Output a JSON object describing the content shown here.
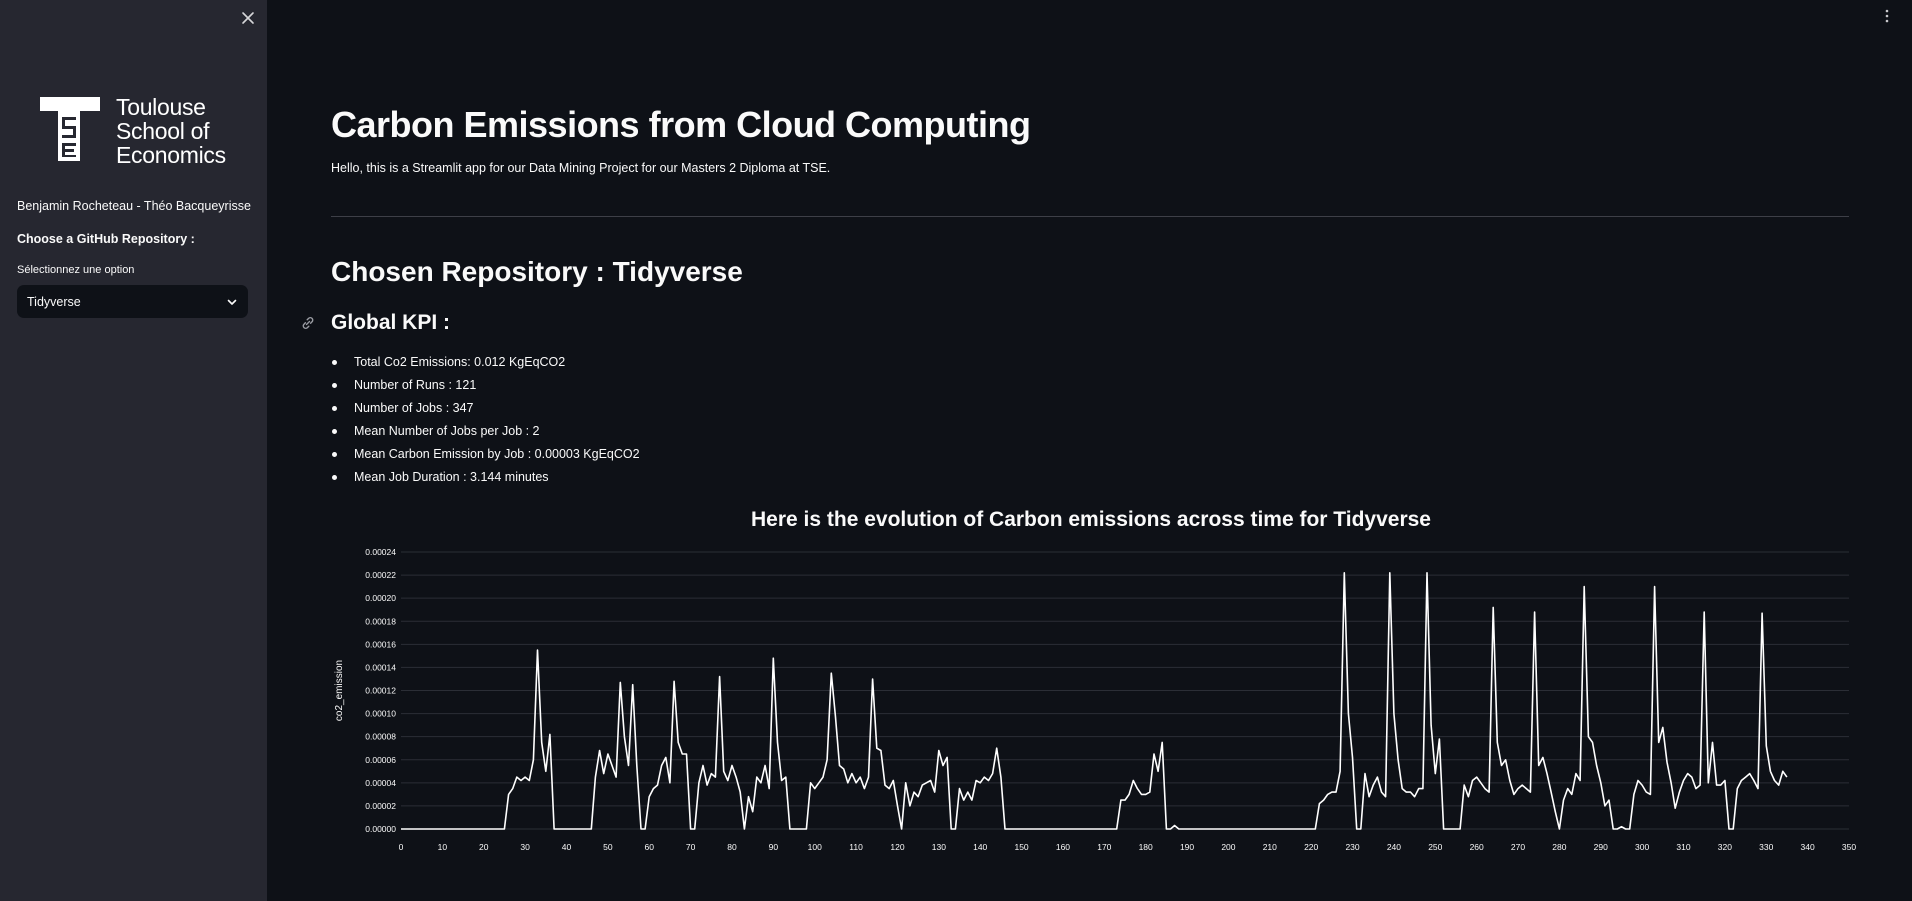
{
  "sidebar": {
    "logo_text": [
      "Toulouse",
      "School of",
      "Economics"
    ],
    "authors": "Benjamin Rocheteau - Théo Bacqueyrisse",
    "choose_label": "Choose a GitHub Repository :",
    "select_label": "Sélectionnez une option",
    "select_value": "Tidyverse"
  },
  "main": {
    "title": "Carbon Emissions from Cloud Computing",
    "intro": "Hello, this is a Streamlit app for our Data Mining Project for our Masters 2 Diploma at TSE.",
    "repo_heading": "Chosen Repository : Tidyverse",
    "kpi_heading": "Global KPI :",
    "kpis": [
      "Total Co2 Emissions: 0.012 KgEqCO2",
      "Number of Runs : 121",
      "Number of Jobs : 347",
      "Mean Number of Jobs per Job : 2",
      "Mean Carbon Emission by Job : 0.00003 KgEqCO2",
      "Mean Job Duration : 3.144 minutes"
    ]
  },
  "chart_data": {
    "type": "line",
    "title": "Here is the evolution of Carbon emissions across time for Tidyverse",
    "xlabel": "",
    "ylabel": "co2_emission",
    "xlim": [
      0,
      350
    ],
    "ylim": [
      0,
      0.00024
    ],
    "x_ticks": [
      0,
      10,
      20,
      30,
      40,
      50,
      60,
      70,
      80,
      90,
      100,
      110,
      120,
      130,
      140,
      150,
      160,
      170,
      180,
      190,
      200,
      210,
      220,
      230,
      240,
      250,
      260,
      270,
      280,
      290,
      300,
      310,
      320,
      330,
      340,
      350
    ],
    "y_ticks": [
      "0.00000",
      "0.00002",
      "0.00004",
      "0.00006",
      "0.00008",
      "0.00010",
      "0.00012",
      "0.00014",
      "0.00016",
      "0.00018",
      "0.00020",
      "0.00022",
      "0.00024"
    ],
    "grid": true,
    "line_color": "#ffffff",
    "points": [
      [
        0,
        0
      ],
      [
        25,
        0
      ],
      [
        26,
        3e-05
      ],
      [
        27,
        3.5e-05
      ],
      [
        28,
        4.5e-05
      ],
      [
        29,
        4.2e-05
      ],
      [
        30,
        4.5e-05
      ],
      [
        31,
        4.2e-05
      ],
      [
        32,
        6e-05
      ],
      [
        33,
        0.000155
      ],
      [
        34,
        7.5e-05
      ],
      [
        35,
        5e-05
      ],
      [
        36,
        8.2e-05
      ],
      [
        37,
        0
      ],
      [
        46,
        0
      ],
      [
        47,
        4.5e-05
      ],
      [
        48,
        6.8e-05
      ],
      [
        49,
        4.8e-05
      ],
      [
        50,
        6.5e-05
      ],
      [
        51,
        5.5e-05
      ],
      [
        52,
        4.5e-05
      ],
      [
        53,
        0.000127
      ],
      [
        54,
        8e-05
      ],
      [
        55,
        5.5e-05
      ],
      [
        56,
        0.000125
      ],
      [
        57,
        5.5e-05
      ],
      [
        58,
        0
      ],
      [
        59,
        0
      ],
      [
        60,
        2.8e-05
      ],
      [
        61,
        3.5e-05
      ],
      [
        62,
        3.8e-05
      ],
      [
        63,
        5.5e-05
      ],
      [
        64,
        6.2e-05
      ],
      [
        65,
        4e-05
      ],
      [
        66,
        0.000128
      ],
      [
        67,
        7.5e-05
      ],
      [
        68,
        6.5e-05
      ],
      [
        69,
        6.5e-05
      ],
      [
        70,
        0
      ],
      [
        71,
        0
      ],
      [
        72,
        4e-05
      ],
      [
        73,
        5.5e-05
      ],
      [
        74,
        3.8e-05
      ],
      [
        75,
        4.8e-05
      ],
      [
        76,
        4.5e-05
      ],
      [
        77,
        0.000132
      ],
      [
        78,
        5e-05
      ],
      [
        79,
        4.2e-05
      ],
      [
        80,
        5.5e-05
      ],
      [
        81,
        4.5e-05
      ],
      [
        82,
        3.2e-05
      ],
      [
        83,
        0
      ],
      [
        84,
        2.8e-05
      ],
      [
        85,
        1.5e-05
      ],
      [
        86,
        4.5e-05
      ],
      [
        87,
        4e-05
      ],
      [
        88,
        5.5e-05
      ],
      [
        89,
        3.5e-05
      ],
      [
        90,
        0.000148
      ],
      [
        91,
        7.5e-05
      ],
      [
        92,
        4.2e-05
      ],
      [
        93,
        4.5e-05
      ],
      [
        94,
        0
      ],
      [
        95,
        0
      ],
      [
        98,
        0
      ],
      [
        99,
        4e-05
      ],
      [
        100,
        3.5e-05
      ],
      [
        101,
        4e-05
      ],
      [
        102,
        4.5e-05
      ],
      [
        103,
        6e-05
      ],
      [
        104,
        0.000135
      ],
      [
        105,
        9.8e-05
      ],
      [
        106,
        5.5e-05
      ],
      [
        107,
        5.2e-05
      ],
      [
        108,
        4e-05
      ],
      [
        109,
        4.8e-05
      ],
      [
        110,
        4e-05
      ],
      [
        111,
        4.5e-05
      ],
      [
        112,
        3.5e-05
      ],
      [
        113,
        4.5e-05
      ],
      [
        114,
        0.00013
      ],
      [
        115,
        7e-05
      ],
      [
        116,
        6.8e-05
      ],
      [
        117,
        3.8e-05
      ],
      [
        118,
        3.5e-05
      ],
      [
        119,
        4.2e-05
      ],
      [
        120,
        2e-05
      ],
      [
        121,
        0
      ],
      [
        122,
        4e-05
      ],
      [
        123,
        2e-05
      ],
      [
        124,
        3.2e-05
      ],
      [
        125,
        2.8e-05
      ],
      [
        126,
        3.8e-05
      ],
      [
        127,
        4e-05
      ],
      [
        128,
        4.2e-05
      ],
      [
        129,
        3.2e-05
      ],
      [
        130,
        6.8e-05
      ],
      [
        131,
        5.5e-05
      ],
      [
        132,
        6.2e-05
      ],
      [
        133,
        0
      ],
      [
        134,
        0
      ],
      [
        135,
        3.5e-05
      ],
      [
        136,
        2.5e-05
      ],
      [
        137,
        3.2e-05
      ],
      [
        138,
        2.5e-05
      ],
      [
        139,
        4.2e-05
      ],
      [
        140,
        4e-05
      ],
      [
        141,
        4.5e-05
      ],
      [
        142,
        4.2e-05
      ],
      [
        143,
        4.8e-05
      ],
      [
        144,
        7e-05
      ],
      [
        145,
        4.5e-05
      ],
      [
        146,
        0
      ],
      [
        173,
        0
      ],
      [
        174,
        2.5e-05
      ],
      [
        175,
        2.5e-05
      ],
      [
        176,
        3e-05
      ],
      [
        177,
        4.2e-05
      ],
      [
        178,
        3.5e-05
      ],
      [
        179,
        3e-05
      ],
      [
        180,
        3e-05
      ],
      [
        181,
        3.2e-05
      ],
      [
        182,
        6.5e-05
      ],
      [
        183,
        5e-05
      ],
      [
        184,
        7.5e-05
      ],
      [
        185,
        0
      ],
      [
        186,
        0
      ],
      [
        187,
        3e-06
      ],
      [
        188,
        0
      ],
      [
        221,
        0
      ],
      [
        222,
        2.2e-05
      ],
      [
        223,
        2.5e-05
      ],
      [
        224,
        3e-05
      ],
      [
        225,
        3.2e-05
      ],
      [
        226,
        3.2e-05
      ],
      [
        227,
        5e-05
      ],
      [
        228,
        0.000222
      ],
      [
        229,
        0.0001
      ],
      [
        230,
        6.2e-05
      ],
      [
        231,
        0
      ],
      [
        232,
        0
      ],
      [
        233,
        4.8e-05
      ],
      [
        234,
        2.8e-05
      ],
      [
        235,
        3.8e-05
      ],
      [
        236,
        4.5e-05
      ],
      [
        237,
        3.2e-05
      ],
      [
        238,
        2.8e-05
      ],
      [
        239,
        0.000222
      ],
      [
        240,
        0.0001
      ],
      [
        241,
        6e-05
      ],
      [
        242,
        3.5e-05
      ],
      [
        243,
        3.2e-05
      ],
      [
        244,
        3.2e-05
      ],
      [
        245,
        2.8e-05
      ],
      [
        246,
        3.5e-05
      ],
      [
        247,
        3.5e-05
      ],
      [
        248,
        0.000222
      ],
      [
        249,
        9e-05
      ],
      [
        250,
        4.8e-05
      ],
      [
        251,
        7.8e-05
      ],
      [
        252,
        0
      ],
      [
        253,
        0
      ],
      [
        254,
        0
      ],
      [
        255,
        0
      ],
      [
        256,
        0
      ],
      [
        257,
        3.8e-05
      ],
      [
        258,
        2.8e-05
      ],
      [
        259,
        4.2e-05
      ],
      [
        260,
        4.5e-05
      ],
      [
        261,
        4e-05
      ],
      [
        262,
        3.5e-05
      ],
      [
        263,
        3.2e-05
      ],
      [
        264,
        0.000192
      ],
      [
        265,
        7.5e-05
      ],
      [
        266,
        5.5e-05
      ],
      [
        267,
        6e-05
      ],
      [
        268,
        4.2e-05
      ],
      [
        269,
        3e-05
      ],
      [
        270,
        3.5e-05
      ],
      [
        271,
        3.8e-05
      ],
      [
        272,
        3.5e-05
      ],
      [
        273,
        3.2e-05
      ],
      [
        274,
        0.000188
      ],
      [
        275,
        5.5e-05
      ],
      [
        276,
        6.2e-05
      ],
      [
        277,
        4.8e-05
      ],
      [
        278,
        3.2e-05
      ],
      [
        279,
        1.5e-05
      ],
      [
        280,
        0
      ],
      [
        281,
        2.5e-05
      ],
      [
        282,
        3.5e-05
      ],
      [
        283,
        3e-05
      ],
      [
        284,
        4.8e-05
      ],
      [
        285,
        4.2e-05
      ],
      [
        286,
        0.00021
      ],
      [
        287,
        8e-05
      ],
      [
        288,
        7.5e-05
      ],
      [
        289,
        5.5e-05
      ],
      [
        290,
        4e-05
      ],
      [
        291,
        2e-05
      ],
      [
        292,
        2.5e-05
      ],
      [
        293,
        0
      ],
      [
        294,
        0
      ],
      [
        295,
        2e-06
      ],
      [
        296,
        0
      ],
      [
        297,
        0
      ],
      [
        298,
        3e-05
      ],
      [
        299,
        4.2e-05
      ],
      [
        300,
        3.8e-05
      ],
      [
        301,
        3.2e-05
      ],
      [
        302,
        3e-05
      ],
      [
        303,
        0.00021
      ],
      [
        304,
        7.5e-05
      ],
      [
        305,
        8.8e-05
      ],
      [
        306,
        5.8e-05
      ],
      [
        307,
        4e-05
      ],
      [
        308,
        1.8e-05
      ],
      [
        309,
        3.2e-05
      ],
      [
        310,
        4.2e-05
      ],
      [
        311,
        4.8e-05
      ],
      [
        312,
        4.5e-05
      ],
      [
        313,
        3.5e-05
      ],
      [
        314,
        3.8e-05
      ],
      [
        315,
        0.000188
      ],
      [
        316,
        4e-05
      ],
      [
        317,
        7.5e-05
      ],
      [
        318,
        3.8e-05
      ],
      [
        319,
        3.8e-05
      ],
      [
        320,
        4.2e-05
      ],
      [
        321,
        0
      ],
      [
        322,
        0
      ],
      [
        323,
        3.5e-05
      ],
      [
        324,
        4.2e-05
      ],
      [
        325,
        4.5e-05
      ],
      [
        326,
        4.8e-05
      ],
      [
        327,
        4.2e-05
      ],
      [
        328,
        3.5e-05
      ],
      [
        329,
        0.000187
      ],
      [
        330,
        7.2e-05
      ],
      [
        331,
        5e-05
      ],
      [
        332,
        4.2e-05
      ],
      [
        333,
        3.8e-05
      ],
      [
        334,
        5e-05
      ],
      [
        335,
        4.5e-05
      ]
    ]
  }
}
